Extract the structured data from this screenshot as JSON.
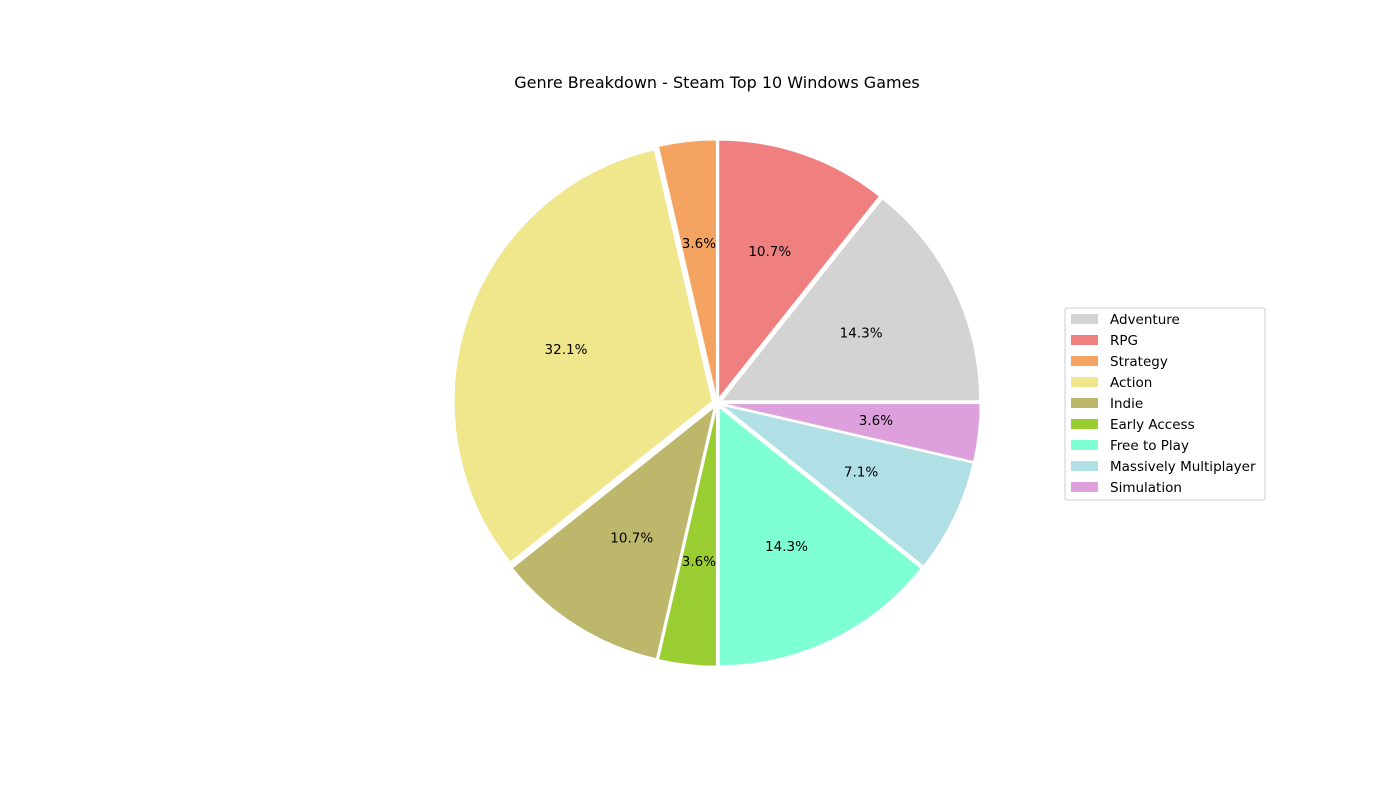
{
  "chart_data": {
    "type": "pie",
    "title": "Genre Breakdown - Steam Top 10 Windows Games",
    "start_angle_deg": 0,
    "direction": "counterclockwise",
    "legend_position": "center-right",
    "slices": [
      {
        "label": "Adventure",
        "percent": 14.3,
        "pct_label": "14.3%",
        "color": "#d3d3d3"
      },
      {
        "label": "RPG",
        "percent": 10.7,
        "pct_label": "10.7%",
        "color": "#f08080"
      },
      {
        "label": "Strategy",
        "percent": 3.6,
        "pct_label": "3.6%",
        "color": "#f4a460"
      },
      {
        "label": "Action",
        "percent": 32.1,
        "pct_label": "32.1%",
        "color": "#f0e68c"
      },
      {
        "label": "Indie",
        "percent": 10.7,
        "pct_label": "10.7%",
        "color": "#bdb76b"
      },
      {
        "label": "Early Access",
        "percent": 3.6,
        "pct_label": "3.6%",
        "color": "#9acd32"
      },
      {
        "label": "Free to Play",
        "percent": 14.3,
        "pct_label": "14.3%",
        "color": "#7fffd4"
      },
      {
        "label": "Massively Multiplayer",
        "percent": 7.1,
        "pct_label": "7.1%",
        "color": "#b0e0e6"
      },
      {
        "label": "Simulation",
        "percent": 3.6,
        "pct_label": "3.6%",
        "color": "#dda0dd"
      }
    ]
  }
}
